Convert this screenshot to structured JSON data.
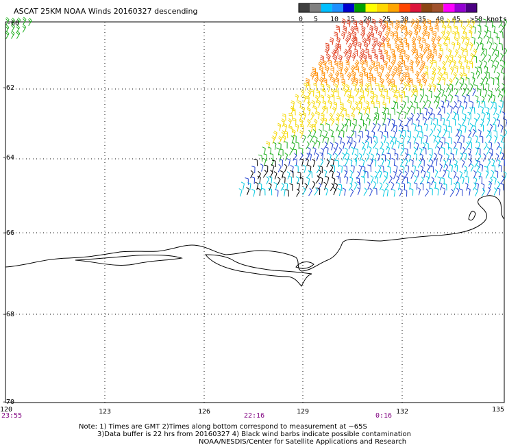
{
  "title": "ASCAT 25KM NOAA Winds 20160327 descending",
  "legend": {
    "colors": [
      "#404040",
      "#808080",
      "#00bfff",
      "#1e90ff",
      "#0000cd",
      "#00a000",
      "#ffff00",
      "#ffd700",
      "#ffa500",
      "#ff4500",
      "#dc143c",
      "#8b4513",
      "#a0522d",
      "#ff00ff",
      "#9400d3",
      "#4b0082"
    ],
    "labels": [
      "0",
      "5",
      "10",
      "15",
      "20",
      "25",
      "30",
      "35",
      "40",
      "45",
      ">50 knots"
    ]
  },
  "lat_labels": [
    "-60",
    "-62",
    "-64",
    "-66",
    "-68",
    "-70"
  ],
  "lon_labels": [
    "120",
    "123",
    "126",
    "129",
    "132",
    "135"
  ],
  "time_labels": [
    "23:55",
    "22:16",
    "0:16"
  ],
  "notes": [
    "Note: 1) Times are GMT 2)Times along bottom correspond to measurement at ~65S",
    "3)Data buffer is 22 hrs from 20160327 4) Black wind barbs indicate possible contamination",
    "NOAA/NESDIS/Center for Satellite Applications and Research"
  ],
  "colors": {
    "wind_yellow": "#f5d800",
    "wind_orange": "#ff8c00",
    "wind_red": "#e04020",
    "wind_green": "#20b020",
    "wind_blue": "#2040d0",
    "wind_cyan": "#00c8e0",
    "wind_black": "#000000",
    "time_label": "#800080"
  }
}
